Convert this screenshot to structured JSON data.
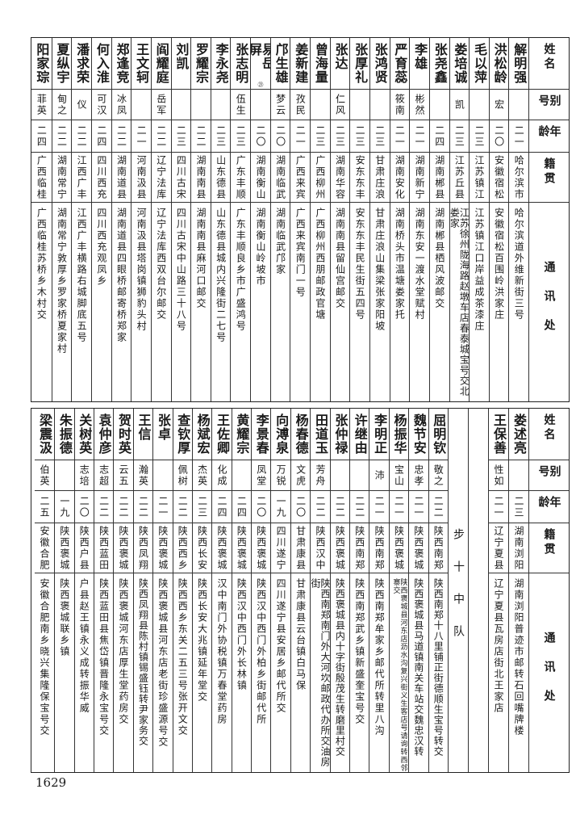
{
  "headers": {
    "name": "姓名",
    "alias": "别号",
    "age": "年龄",
    "origin": "籍贯",
    "address": "通讯处"
  },
  "top": {
    "rows": [
      {
        "name": "解明强",
        "alias": "",
        "age": "二一",
        "origin": "哈尔滨市",
        "address": "哈尔滨道外维新街三号"
      },
      {
        "name": "洪松龄",
        "alias": "宏",
        "age": "二〇",
        "origin": "安徽宿松",
        "address": "安徽宿松百围岭洪家庄"
      },
      {
        "name": "毛以萍",
        "alias": "",
        "age": "二三",
        "origin": "江苏镇江",
        "address": "江苏镇江口岸益成茶漆庄"
      },
      {
        "name": "娄培诚",
        "alias": "凯",
        "age": "二三",
        "origin": "江苏丘县",
        "address": "江苏徐州陇海路赵墩车店春泰城宝号交北娄家"
      },
      {
        "name": "张尧鑫",
        "alias": "",
        "age": "二四",
        "origin": "湖南郴县",
        "address": "湖南郴县栖风波邮交"
      },
      {
        "name": "李雄",
        "alias": "彬然",
        "age": "二一",
        "origin": "湖南新宁",
        "address": "湖南东安一渡水堂赋村"
      },
      {
        "name": "严育蕊",
        "alias": "筱南",
        "age": "二一",
        "origin": "湖南安化",
        "address": "湖南桥头市温塘娄家托"
      },
      {
        "name": "张鸿贤",
        "alias": "",
        "age": "二三",
        "origin": "甘肃庄浪",
        "address": "甘肃庄浪山集梁张家阳坡"
      },
      {
        "name": "张厚礼",
        "alias": "",
        "age": "二三",
        "origin": "安东东丰",
        "address": "安东东丰民生街五四号"
      },
      {
        "name": "张达",
        "alias": "仁风",
        "age": "二三",
        "origin": "湖南华容",
        "address": "湖南南县留仙宫邮交"
      },
      {
        "name": "曾海量",
        "alias": "",
        "age": "二三",
        "origin": "广西柳州",
        "address": "广西柳州西朋邮政官塘"
      },
      {
        "name": "姜新建",
        "alias": "孜民",
        "age": "二一",
        "origin": "广西来宾",
        "address": "广西来宾南门一号"
      },
      {
        "name": "邝生雄",
        "alias": "梦云",
        "age": "二〇",
        "origin": "湖南临武",
        "address": "湖南临武邝家"
      },
      {
        "name": "易岳屏",
        "note": "㉑",
        "alias": "",
        "age": "二〇",
        "origin": "湖南衡山",
        "address": "湖南衡山岭坡市"
      },
      {
        "name": "张志明",
        "alias": "伍生",
        "age": "二三",
        "origin": "广东丰顺",
        "address": "广东丰顺良乡市广盛鸿号"
      },
      {
        "name": "李永尧",
        "alias": "",
        "age": "二三",
        "origin": "山东德县",
        "address": "山东德县城内兴隆街二七号"
      },
      {
        "name": "罗耀宗",
        "alias": "",
        "age": "二二",
        "origin": "湖南南县",
        "address": "湖南南县麻河口邮交"
      },
      {
        "name": "刘凯",
        "alias": "",
        "age": "二三",
        "origin": "四川古宋",
        "address": "四川古宋中山路三十八号"
      },
      {
        "name": "阎耀庭",
        "alias": "岳军",
        "age": "二二",
        "origin": "辽宁法库",
        "address": "辽宁法库西双台尔邮交"
      },
      {
        "name": "王文轲",
        "alias": "",
        "age": "二一",
        "origin": "河南汲县",
        "address": "河南汲县塔岗镇狮豹头村"
      },
      {
        "name": "郑逢竞",
        "alias": "冰凤",
        "age": "二二",
        "origin": "湖南道县",
        "address": "湖南道县四眼桥邮寄桥郑家"
      },
      {
        "name": "何入淮",
        "alias": "可汉",
        "age": "二四",
        "origin": "四川西充",
        "address": "四川西充观凤乡"
      },
      {
        "name": "潘求荣",
        "alias": "仪",
        "age": "二二",
        "origin": "江西广丰",
        "address": "江西广丰横路右城脚底五号"
      },
      {
        "name": "夏纵宇",
        "alias": "甸之",
        "age": "二二",
        "origin": "湖南常宁",
        "address": "湖南常宁敦厚乡罗家桥夏家村"
      },
      {
        "name": "阳家琮",
        "alias": "菲英",
        "age": "二四",
        "origin": "广西临桂",
        "address": "广西临桂苏桥乡木村交"
      }
    ]
  },
  "bottom": {
    "rows_before": [
      {
        "name": "娄述亮",
        "alias": "",
        "age": "二三",
        "origin": "湖南浏阳",
        "address": "湖南浏阳普迹市邮转石回嘴牌楼"
      },
      {
        "name": "王保善",
        "alias": "性如",
        "age": "二一",
        "origin": "辽宁夏县",
        "address": "辽宁夏县瓦房店街北王家店"
      }
    ],
    "section_label": "步十中队",
    "rows": [
      {
        "name": "屈明钦",
        "alias": "敬之",
        "age": "二二",
        "origin": "陕西南郑",
        "address": "陕西南郑十八里铺正街德顺生宝号转交"
      },
      {
        "name": "魏节安",
        "alias": "忠孝",
        "age": "二一",
        "origin": "陕西褒城",
        "address": "陕西褒城县马道镇南关车站交魏忠汉转"
      },
      {
        "name": "杨振华",
        "alias": "宝山",
        "age": "二一",
        "origin": "陕西褒城",
        "address": "陕西褒城县河东店沥水沟复兴街义生客店号请询转西邻寨交"
      },
      {
        "name": "李明正",
        "alias": "沛",
        "age": "二一",
        "origin": "陕西南郑",
        "address": "陕西南郑牟家乡邮代所转里八沟"
      },
      {
        "name": "许继由",
        "alias": "",
        "age": "二二",
        "origin": "陕西南郑",
        "address": "陕西南郑武乡镇新盛奎宝号交"
      },
      {
        "name": "张仲禄",
        "alias": "",
        "age": "二二",
        "origin": "陕西褒城",
        "address": "陕西褒城县内十字街殷茂生转磨里村交"
      },
      {
        "name": "田道玉",
        "alias": "芳舟",
        "age": "二二",
        "origin": "陕西汉中",
        "address": "陕西南郑南门外大河坎邮政代办所交油房街"
      },
      {
        "name": "杨春德",
        "alias": "文虎",
        "age": "二〇",
        "origin": "甘肃康县",
        "address": "甘肃康县云台镇白马保"
      },
      {
        "name": "向溥泉",
        "alias": "万锐",
        "age": "一九",
        "origin": "四川遂宁",
        "address": "四川遂宁县安居乡邮代所交"
      },
      {
        "name": "李景春",
        "alias": "凤堂",
        "age": "二〇",
        "origin": "陕西褒城",
        "address": "陕西汉中西门外柏乡街邮代所"
      },
      {
        "name": "黄耀宗",
        "alias": "",
        "age": "二四",
        "origin": "陕西褒城",
        "address": "陕西汉中西门外长林镇"
      },
      {
        "name": "王佐卿",
        "alias": "化成",
        "age": "二四",
        "origin": "陕西褒城",
        "address": "汉中南门外协税镇万春堂药房"
      },
      {
        "name": "杨斌宏",
        "alias": "杰英",
        "age": "二三",
        "origin": "陕西长安",
        "address": "陕西长安大兆镇延年堂交"
      },
      {
        "name": "查钦厚",
        "alias": "佩树",
        "age": "二二",
        "origin": "陕西西乡",
        "address": "陕西西乡东关二五三号张开文交"
      },
      {
        "name": "张卓",
        "alias": "",
        "age": "二一",
        "origin": "陕西褒城",
        "address": "陕西褒城县河东店老街珍盛源号交"
      },
      {
        "name": "王信",
        "alias": "瀚英",
        "age": "二二",
        "origin": "陕西凤翔",
        "address": "陕西凤翔县陈村镇锡盛钰转尹家务交"
      },
      {
        "name": "贺时英",
        "alias": "云五",
        "age": "二二",
        "origin": "陕西褒城",
        "address": "陕西褒城河东店厚生堂药房交"
      },
      {
        "name": "袁仲彦",
        "alias": "志超",
        "age": "二二",
        "origin": "陕西蓝田",
        "address": "陕西蓝田县焦岱镇晋隆永宝号交"
      },
      {
        "name": "关树英",
        "alias": "志培",
        "age": "二〇",
        "origin": "陕西户县",
        "address": "户县赵王镇永义成转振华威"
      },
      {
        "name": "朱振德",
        "alias": "",
        "age": "一九",
        "origin": "陕西褒城",
        "address": "陕西褒城联乡镇"
      },
      {
        "name": "梁震汲",
        "alias": "伯英",
        "age": "二五",
        "origin": "安徽合肥",
        "address": "安徽合肥南乡晓兴集隆保宝号交"
      }
    ]
  },
  "page_number": "1629"
}
